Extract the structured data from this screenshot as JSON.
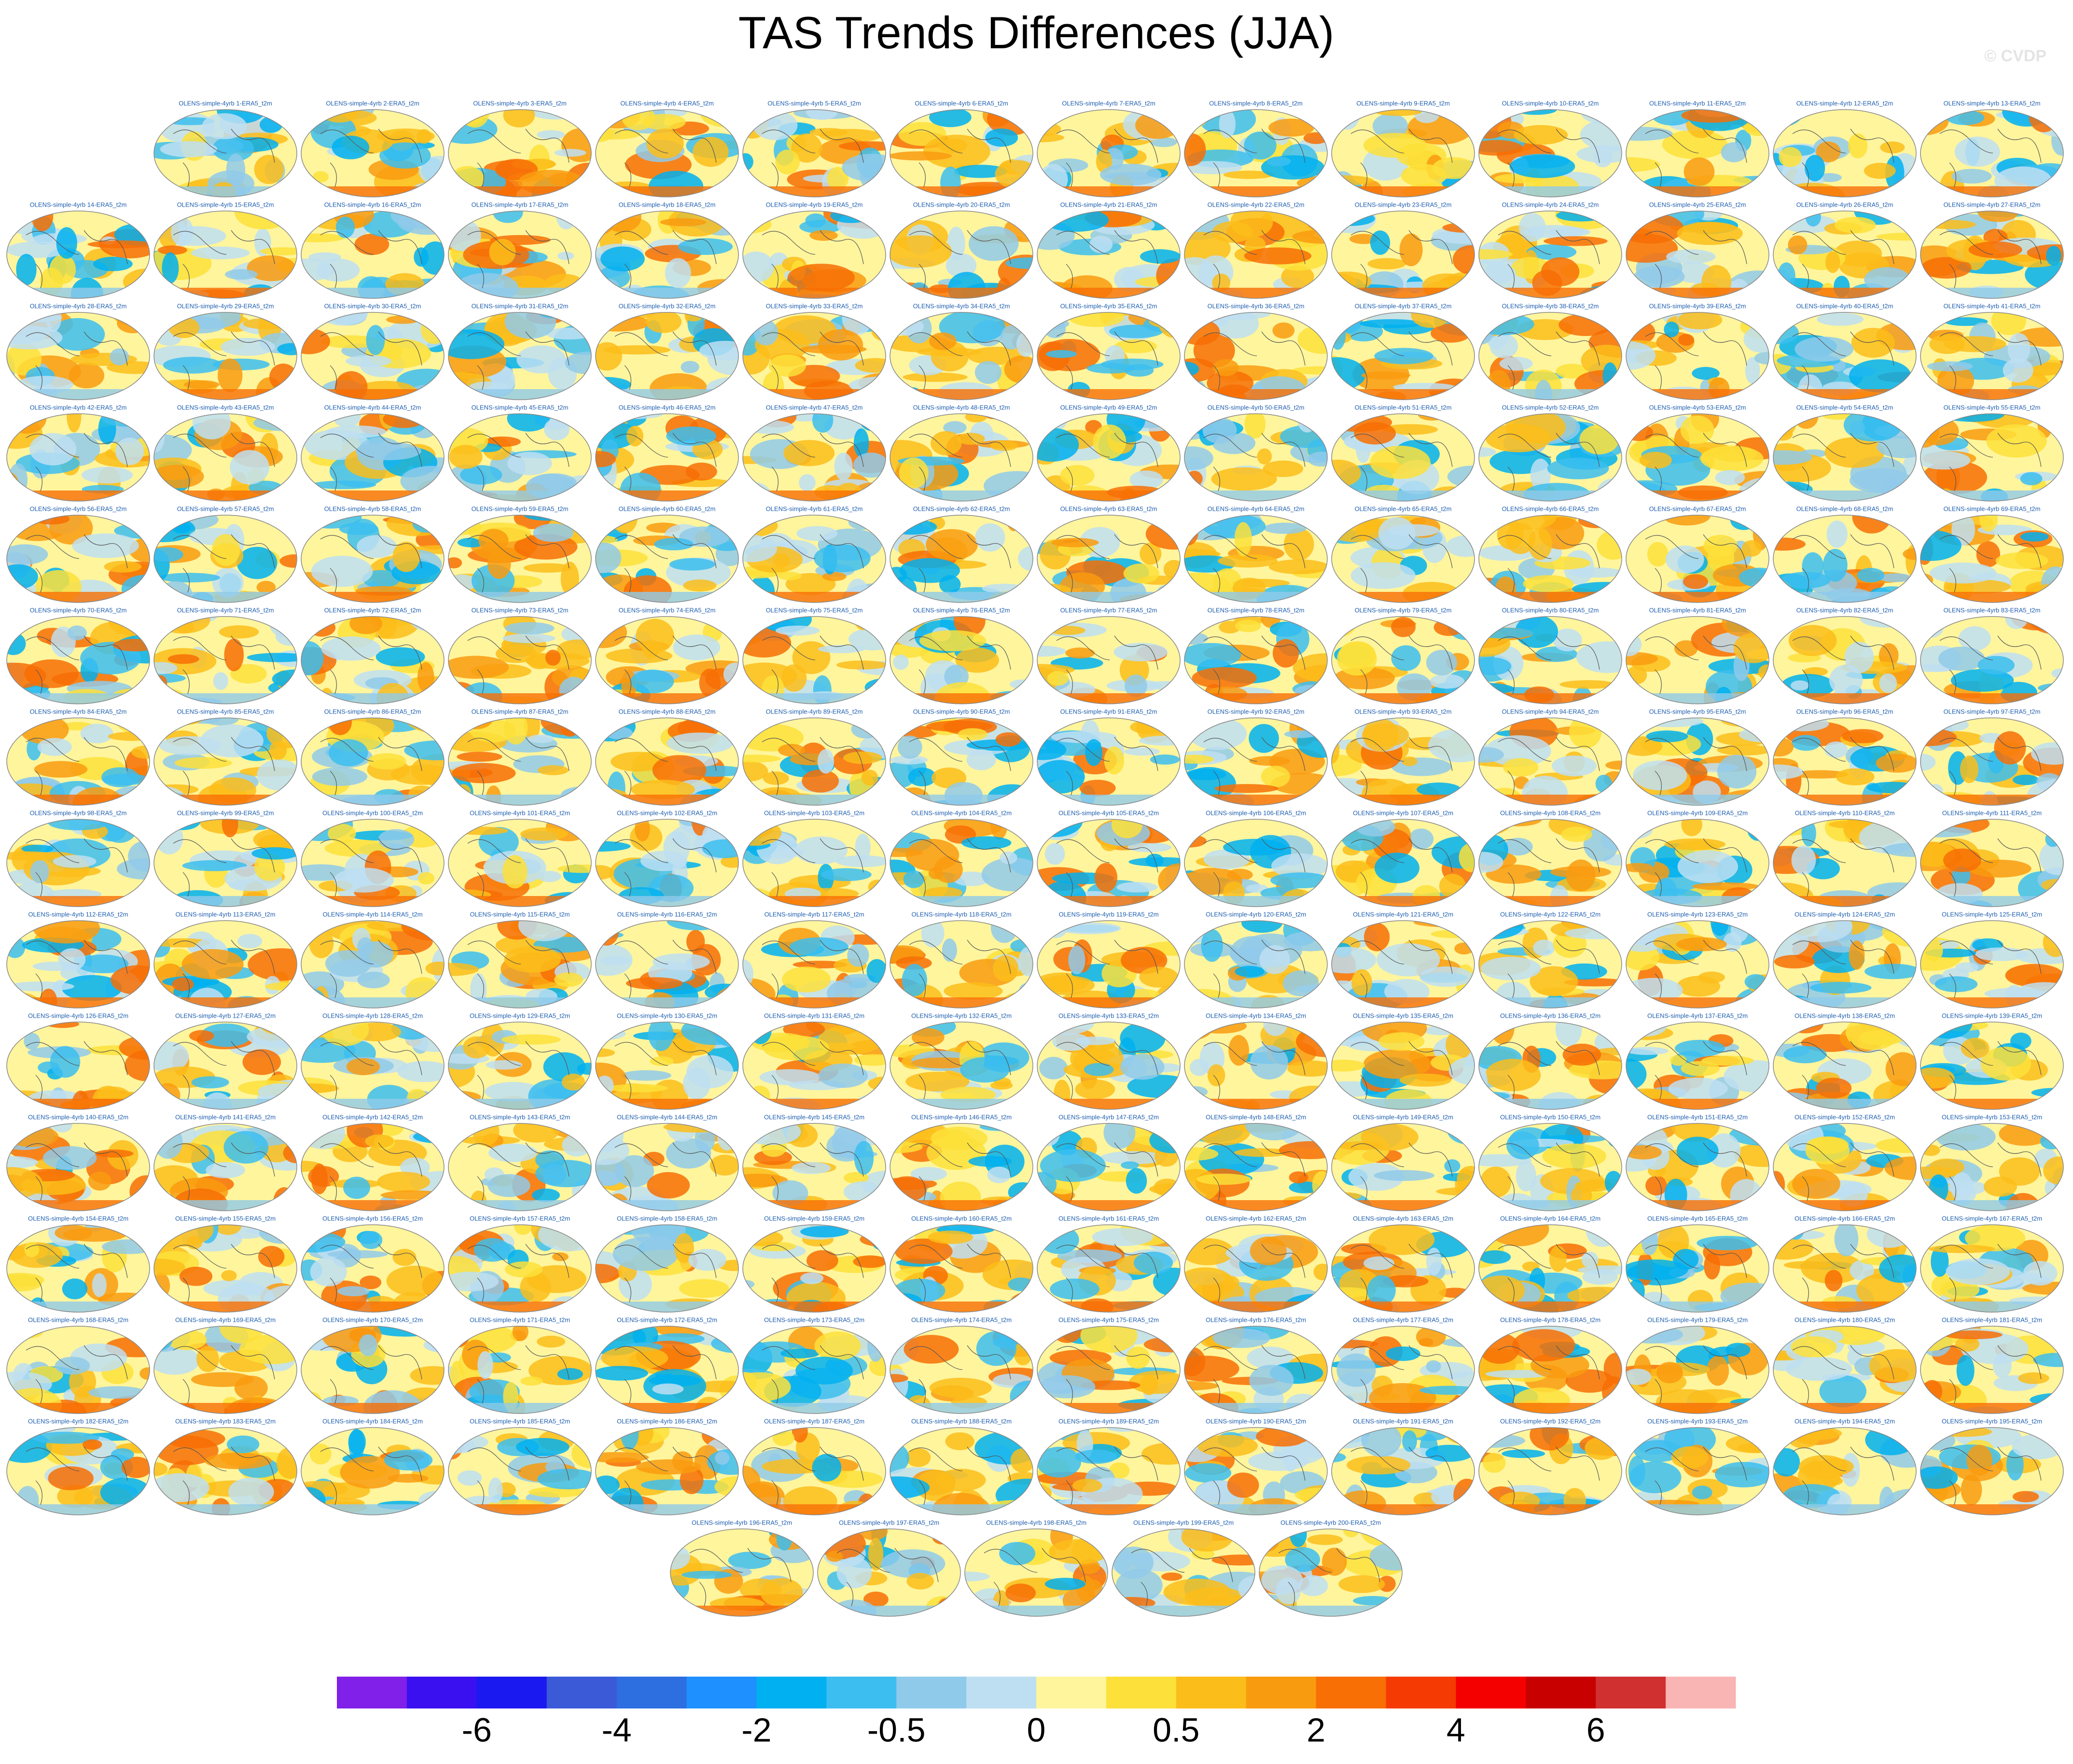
{
  "header": {
    "title": "TAS Trends Differences (JJA)",
    "watermark": "© CVDP"
  },
  "panels": [
    "OLENS-simple-4yrb 1-ERA5_t2m",
    "OLENS-simple-4yrb 2-ERA5_t2m",
    "OLENS-simple-4yrb 3-ERA5_t2m",
    "OLENS-simple-4yrb 4-ERA5_t2m",
    "OLENS-simple-4yrb 5-ERA5_t2m",
    "OLENS-simple-4yrb 6-ERA5_t2m",
    "OLENS-simple-4yrb 7-ERA5_t2m",
    "OLENS-simple-4yrb 8-ERA5_t2m",
    "OLENS-simple-4yrb 9-ERA5_t2m",
    "OLENS-simple-4yrb 10-ERA5_t2m",
    "OLENS-simple-4yrb 11-ERA5_t2m",
    "OLENS-simple-4yrb 12-ERA5_t2m",
    "OLENS-simple-4yrb 13-ERA5_t2m",
    "OLENS-simple-4yrb 14-ERA5_t2m",
    "OLENS-simple-4yrb 15-ERA5_t2m",
    "OLENS-simple-4yrb 16-ERA5_t2m",
    "OLENS-simple-4yrb 17-ERA5_t2m",
    "OLENS-simple-4yrb 18-ERA5_t2m",
    "OLENS-simple-4yrb 19-ERA5_t2m",
    "OLENS-simple-4yrb 20-ERA5_t2m",
    "OLENS-simple-4yrb 21-ERA5_t2m",
    "OLENS-simple-4yrb 22-ERA5_t2m",
    "OLENS-simple-4yrb 23-ERA5_t2m",
    "OLENS-simple-4yrb 24-ERA5_t2m",
    "OLENS-simple-4yrb 25-ERA5_t2m",
    "OLENS-simple-4yrb 26-ERA5_t2m",
    "OLENS-simple-4yrb 27-ERA5_t2m",
    "OLENS-simple-4yrb 28-ERA5_t2m",
    "OLENS-simple-4yrb 29-ERA5_t2m",
    "OLENS-simple-4yrb 30-ERA5_t2m",
    "OLENS-simple-4yrb 31-ERA5_t2m",
    "OLENS-simple-4yrb 32-ERA5_t2m",
    "OLENS-simple-4yrb 33-ERA5_t2m",
    "OLENS-simple-4yrb 34-ERA5_t2m",
    "OLENS-simple-4yrb 35-ERA5_t2m",
    "OLENS-simple-4yrb 36-ERA5_t2m",
    "OLENS-simple-4yrb 37-ERA5_t2m",
    "OLENS-simple-4yrb 38-ERA5_t2m",
    "OLENS-simple-4yrb 39-ERA5_t2m",
    "OLENS-simple-4yrb 40-ERA5_t2m",
    "OLENS-simple-4yrb 41-ERA5_t2m",
    "OLENS-simple-4yrb 42-ERA5_t2m",
    "OLENS-simple-4yrb 43-ERA5_t2m",
    "OLENS-simple-4yrb 44-ERA5_t2m",
    "OLENS-simple-4yrb 45-ERA5_t2m",
    "OLENS-simple-4yrb 46-ERA5_t2m",
    "OLENS-simple-4yrb 47-ERA5_t2m",
    "OLENS-simple-4yrb 48-ERA5_t2m",
    "OLENS-simple-4yrb 49-ERA5_t2m",
    "OLENS-simple-4yrb 50-ERA5_t2m",
    "OLENS-simple-4yrb 51-ERA5_t2m",
    "OLENS-simple-4yrb 52-ERA5_t2m",
    "OLENS-simple-4yrb 53-ERA5_t2m",
    "OLENS-simple-4yrb 54-ERA5_t2m",
    "OLENS-simple-4yrb 55-ERA5_t2m",
    "OLENS-simple-4yrb 56-ERA5_t2m",
    "OLENS-simple-4yrb 57-ERA5_t2m",
    "OLENS-simple-4yrb 58-ERA5_t2m",
    "OLENS-simple-4yrb 59-ERA5_t2m",
    "OLENS-simple-4yrb 60-ERA5_t2m",
    "OLENS-simple-4yrb 61-ERA5_t2m",
    "OLENS-simple-4yrb 62-ERA5_t2m",
    "OLENS-simple-4yrb 63-ERA5_t2m",
    "OLENS-simple-4yrb 64-ERA5_t2m",
    "OLENS-simple-4yrb 65-ERA5_t2m",
    "OLENS-simple-4yrb 66-ERA5_t2m",
    "OLENS-simple-4yrb 67-ERA5_t2m",
    "OLENS-simple-4yrb 68-ERA5_t2m",
    "OLENS-simple-4yrb 69-ERA5_t2m",
    "OLENS-simple-4yrb 70-ERA5_t2m",
    "OLENS-simple-4yrb 71-ERA5_t2m",
    "OLENS-simple-4yrb 72-ERA5_t2m",
    "OLENS-simple-4yrb 73-ERA5_t2m",
    "OLENS-simple-4yrb 74-ERA5_t2m",
    "OLENS-simple-4yrb 75-ERA5_t2m",
    "OLENS-simple-4yrb 76-ERA5_t2m",
    "OLENS-simple-4yrb 77-ERA5_t2m",
    "OLENS-simple-4yrb 78-ERA5_t2m",
    "OLENS-simple-4yrb 79-ERA5_t2m",
    "OLENS-simple-4yrb 80-ERA5_t2m",
    "OLENS-simple-4yrb 81-ERA5_t2m",
    "OLENS-simple-4yrb 82-ERA5_t2m",
    "OLENS-simple-4yrb 83-ERA5_t2m",
    "OLENS-simple-4yrb 84-ERA5_t2m",
    "OLENS-simple-4yrb 85-ERA5_t2m",
    "OLENS-simple-4yrb 86-ERA5_t2m",
    "OLENS-simple-4yrb 87-ERA5_t2m",
    "OLENS-simple-4yrb 88-ERA5_t2m",
    "OLENS-simple-4yrb 89-ERA5_t2m",
    "OLENS-simple-4yrb 90-ERA5_t2m",
    "OLENS-simple-4yrb 91-ERA5_t2m",
    "OLENS-simple-4yrb 92-ERA5_t2m",
    "OLENS-simple-4yrb 93-ERA5_t2m",
    "OLENS-simple-4yrb 94-ERA5_t2m",
    "OLENS-simple-4yrb 95-ERA5_t2m",
    "OLENS-simple-4yrb 96-ERA5_t2m",
    "OLENS-simple-4yrb 97-ERA5_t2m",
    "OLENS-simple-4yrb 98-ERA5_t2m",
    "OLENS-simple-4yrb 99-ERA5_t2m",
    "OLENS-simple-4yrb 100-ERA5_t2m",
    "OLENS-simple-4yrb 101-ERA5_t2m",
    "OLENS-simple-4yrb 102-ERA5_t2m",
    "OLENS-simple-4yrb 103-ERA5_t2m",
    "OLENS-simple-4yrb 104-ERA5_t2m",
    "OLENS-simple-4yrb 105-ERA5_t2m",
    "OLENS-simple-4yrb 106-ERA5_t2m",
    "OLENS-simple-4yrb 107-ERA5_t2m",
    "OLENS-simple-4yrb 108-ERA5_t2m",
    "OLENS-simple-4yrb 109-ERA5_t2m",
    "OLENS-simple-4yrb 110-ERA5_t2m",
    "OLENS-simple-4yrb 111-ERA5_t2m",
    "OLENS-simple-4yrb 112-ERA5_t2m",
    "OLENS-simple-4yrb 113-ERA5_t2m",
    "OLENS-simple-4yrb 114-ERA5_t2m",
    "OLENS-simple-4yrb 115-ERA5_t2m",
    "OLENS-simple-4yrb 116-ERA5_t2m",
    "OLENS-simple-4yrb 117-ERA5_t2m",
    "OLENS-simple-4yrb 118-ERA5_t2m",
    "OLENS-simple-4yrb 119-ERA5_t2m",
    "OLENS-simple-4yrb 120-ERA5_t2m",
    "OLENS-simple-4yrb 121-ERA5_t2m",
    "OLENS-simple-4yrb 122-ERA5_t2m",
    "OLENS-simple-4yrb 123-ERA5_t2m",
    "OLENS-simple-4yrb 124-ERA5_t2m",
    "OLENS-simple-4yrb 125-ERA5_t2m",
    "OLENS-simple-4yrb 126-ERA5_t2m",
    "OLENS-simple-4yrb 127-ERA5_t2m",
    "OLENS-simple-4yrb 128-ERA5_t2m",
    "OLENS-simple-4yrb 129-ERA5_t2m",
    "OLENS-simple-4yrb 130-ERA5_t2m",
    "OLENS-simple-4yrb 131-ERA5_t2m",
    "OLENS-simple-4yrb 132-ERA5_t2m",
    "OLENS-simple-4yrb 133-ERA5_t2m",
    "OLENS-simple-4yrb 134-ERA5_t2m",
    "OLENS-simple-4yrb 135-ERA5_t2m",
    "OLENS-simple-4yrb 136-ERA5_t2m",
    "OLENS-simple-4yrb 137-ERA5_t2m",
    "OLENS-simple-4yrb 138-ERA5_t2m",
    "OLENS-simple-4yrb 139-ERA5_t2m",
    "OLENS-simple-4yrb 140-ERA5_t2m",
    "OLENS-simple-4yrb 141-ERA5_t2m",
    "OLENS-simple-4yrb 142-ERA5_t2m",
    "OLENS-simple-4yrb 143-ERA5_t2m",
    "OLENS-simple-4yrb 144-ERA5_t2m",
    "OLENS-simple-4yrb 145-ERA5_t2m",
    "OLENS-simple-4yrb 146-ERA5_t2m",
    "OLENS-simple-4yrb 147-ERA5_t2m",
    "OLENS-simple-4yrb 148-ERA5_t2m",
    "OLENS-simple-4yrb 149-ERA5_t2m",
    "OLENS-simple-4yrb 150-ERA5_t2m",
    "OLENS-simple-4yrb 151-ERA5_t2m",
    "OLENS-simple-4yrb 152-ERA5_t2m",
    "OLENS-simple-4yrb 153-ERA5_t2m",
    "OLENS-simple-4yrb 154-ERA5_t2m",
    "OLENS-simple-4yrb 155-ERA5_t2m",
    "OLENS-simple-4yrb 156-ERA5_t2m",
    "OLENS-simple-4yrb 157-ERA5_t2m",
    "OLENS-simple-4yrb 158-ERA5_t2m",
    "OLENS-simple-4yrb 159-ERA5_t2m",
    "OLENS-simple-4yrb 160-ERA5_t2m",
    "OLENS-simple-4yrb 161-ERA5_t2m",
    "OLENS-simple-4yrb 162-ERA5_t2m",
    "OLENS-simple-4yrb 163-ERA5_t2m",
    "OLENS-simple-4yrb 164-ERA5_t2m",
    "OLENS-simple-4yrb 165-ERA5_t2m",
    "OLENS-simple-4yrb 166-ERA5_t2m",
    "OLENS-simple-4yrb 167-ERA5_t2m",
    "OLENS-simple-4yrb 168-ERA5_t2m",
    "OLENS-simple-4yrb 169-ERA5_t2m",
    "OLENS-simple-4yrb 170-ERA5_t2m",
    "OLENS-simple-4yrb 171-ERA5_t2m",
    "OLENS-simple-4yrb 172-ERA5_t2m",
    "OLENS-simple-4yrb 173-ERA5_t2m",
    "OLENS-simple-4yrb 174-ERA5_t2m",
    "OLENS-simple-4yrb 175-ERA5_t2m",
    "OLENS-simple-4yrb 176-ERA5_t2m",
    "OLENS-simple-4yrb 177-ERA5_t2m",
    "OLENS-simple-4yrb 178-ERA5_t2m",
    "OLENS-simple-4yrb 179-ERA5_t2m",
    "OLENS-simple-4yrb 180-ERA5_t2m",
    "OLENS-simple-4yrb 181-ERA5_t2m",
    "OLENS-simple-4yrb 182-ERA5_t2m",
    "OLENS-simple-4yrb 183-ERA5_t2m",
    "OLENS-simple-4yrb 184-ERA5_t2m",
    "OLENS-simple-4yrb 185-ERA5_t2m",
    "OLENS-simple-4yrb 186-ERA5_t2m",
    "OLENS-simple-4yrb 187-ERA5_t2m",
    "OLENS-simple-4yrb 188-ERA5_t2m",
    "OLENS-simple-4yrb 189-ERA5_t2m",
    "OLENS-simple-4yrb 190-ERA5_t2m",
    "OLENS-simple-4yrb 191-ERA5_t2m",
    "OLENS-simple-4yrb 192-ERA5_t2m",
    "OLENS-simple-4yrb 193-ERA5_t2m",
    "OLENS-simple-4yrb 194-ERA5_t2m",
    "OLENS-simple-4yrb 195-ERA5_t2m",
    "OLENS-simple-4yrb 196-ERA5_t2m",
    "OLENS-simple-4yrb 197-ERA5_t2m",
    "OLENS-simple-4yrb 198-ERA5_t2m",
    "OLENS-simple-4yrb 199-ERA5_t2m",
    "OLENS-simple-4yrb 200-ERA5_t2m"
  ],
  "colorbar": {
    "colors": [
      "#8020e8",
      "#3a10f0",
      "#1a1af0",
      "#3a5ad8",
      "#2d6ee0",
      "#1e90ff",
      "#00b0f0",
      "#3cbef0",
      "#90caea",
      "#bedff2",
      "#fff59d",
      "#fde03a",
      "#fbbd1a",
      "#f99b0f",
      "#f76f05",
      "#f53b03",
      "#f50000",
      "#c80000",
      "#d03030",
      "#f9b4b4"
    ],
    "labels": [
      "-6",
      "-4",
      "-2",
      "-0.5",
      "0",
      "0.5",
      "2",
      "4",
      "6"
    ]
  }
}
